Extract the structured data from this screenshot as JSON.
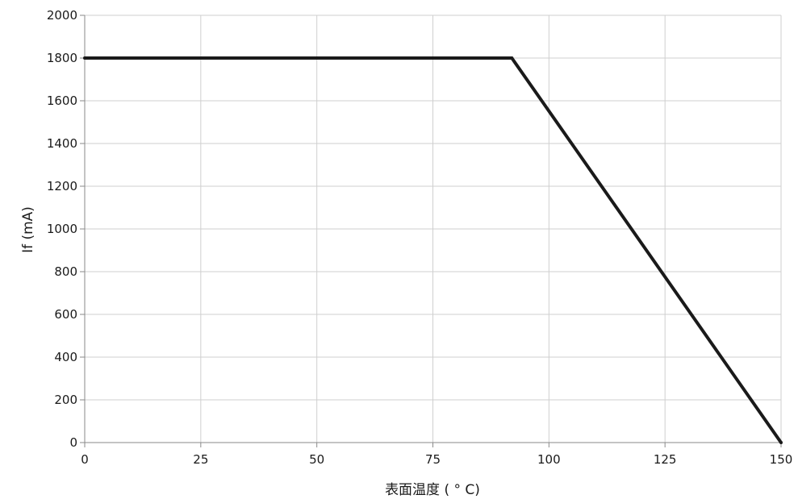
{
  "chart_data": {
    "type": "line",
    "title": "",
    "xlabel": "表面温度 ( ° C)",
    "ylabel": "If (mA)",
    "xlim": [
      0,
      150
    ],
    "ylim": [
      0,
      2000
    ],
    "xticks": [
      0,
      25,
      50,
      75,
      100,
      125,
      150
    ],
    "yticks": [
      0,
      200,
      400,
      600,
      800,
      1000,
      1200,
      1400,
      1600,
      1800,
      2000
    ],
    "grid": true,
    "legend": "none",
    "series": [
      {
        "color": "#1a1a1a",
        "x": [
          0,
          92,
          150
        ],
        "y": [
          1800,
          1800,
          0
        ]
      }
    ]
  }
}
